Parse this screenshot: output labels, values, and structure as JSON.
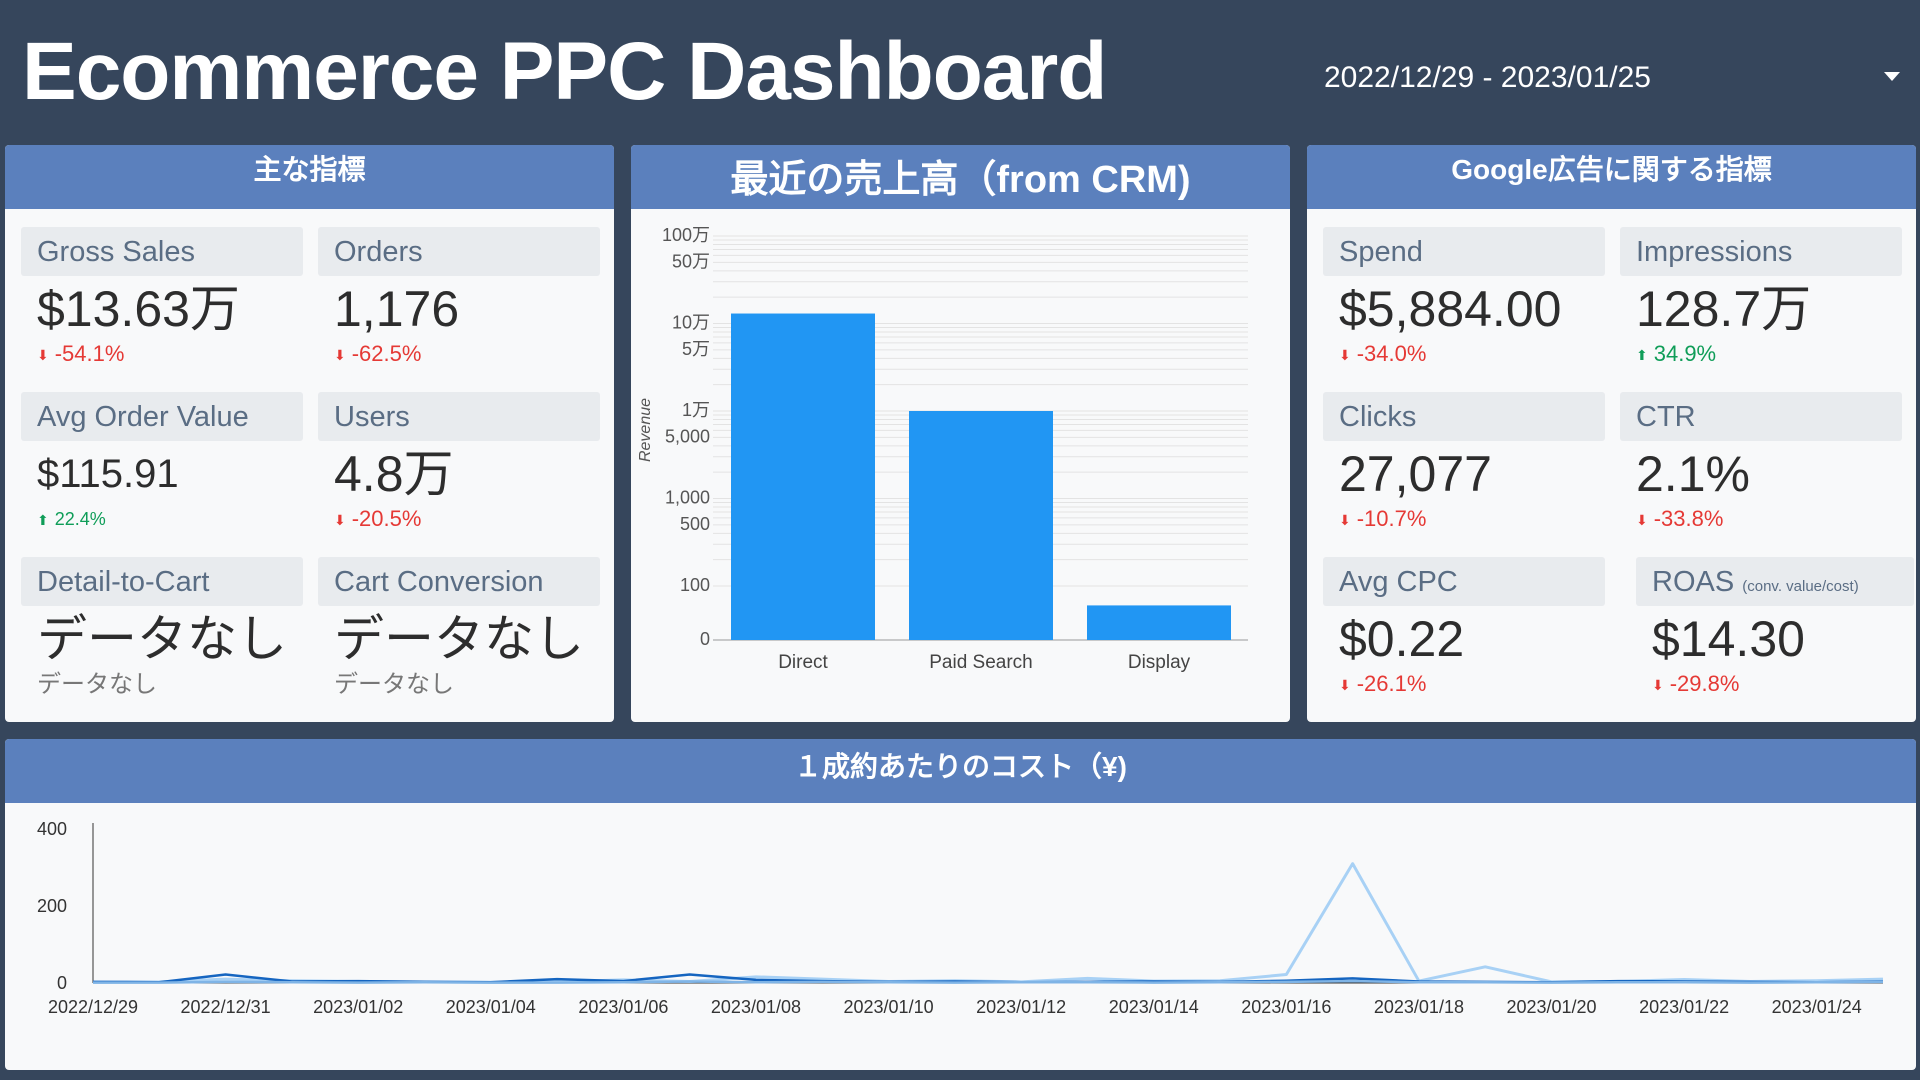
{
  "header": {
    "title": "Ecommerce PPC Dashboard",
    "date_range": "2022/12/29 - 2023/01/25"
  },
  "panels": {
    "main_metrics": {
      "title": "主な指標",
      "kpis": [
        {
          "label": "Gross Sales",
          "value": "$13.63万",
          "delta": "-54.1%",
          "trend": "down"
        },
        {
          "label": "Orders",
          "value": "1,176",
          "delta": "-62.5%",
          "trend": "down"
        },
        {
          "label": "Avg Order Value",
          "value": "$115.91",
          "delta": "22.4%",
          "trend": "up"
        },
        {
          "label": "Users",
          "value": "4.8万",
          "delta": "-20.5%",
          "trend": "down"
        },
        {
          "label": "Detail-to-Cart",
          "value": "データなし",
          "sub": "データなし"
        },
        {
          "label": "Cart Conversion",
          "value": "データなし",
          "sub": "データなし"
        }
      ]
    },
    "revenue": {
      "title": "最近の売上高（from CRM)"
    },
    "google_ads": {
      "title": "Google広告に関する指標",
      "kpis": [
        {
          "label": "Spend",
          "value": "$5,884.00",
          "delta": "-34.0%",
          "trend": "down"
        },
        {
          "label": "Impressions",
          "value": "128.7万",
          "delta": "34.9%",
          "trend": "up"
        },
        {
          "label": "Clicks",
          "value": "27,077",
          "delta": "-10.7%",
          "trend": "down"
        },
        {
          "label": "CTR",
          "value": "2.1%",
          "delta": "-33.8%",
          "trend": "down"
        },
        {
          "label": "Avg CPC",
          "value": "$0.22",
          "delta": "-26.1%",
          "trend": "down"
        },
        {
          "label": "ROAS",
          "label_sub": "(conv. value/cost)",
          "value": "$14.30",
          "delta": "-29.8%",
          "trend": "down"
        }
      ]
    },
    "cost_per_conversion": {
      "title": "１成約あたりのコスト（¥)"
    }
  },
  "colors": {
    "background": "#36465c",
    "header": "#5b80bd",
    "bar": "#2196f3",
    "line_light": "#a8d1f5",
    "line_dark": "#1565c0",
    "down": "#e53935",
    "up": "#0f9d58"
  },
  "chart_data": [
    {
      "type": "bar",
      "ylabel": "Revenue",
      "yscale": "log",
      "categories": [
        "Direct",
        "Paid Search",
        "Display"
      ],
      "values": [
        130000,
        10000,
        60
      ],
      "ticks": [
        {
          "value": 1000000,
          "label": "100万"
        },
        {
          "value": 500000,
          "label": "50万"
        },
        {
          "value": 100000,
          "label": "10万"
        },
        {
          "value": 50000,
          "label": "5万"
        },
        {
          "value": 10000,
          "label": "1万"
        },
        {
          "value": 5000,
          "label": "5,000"
        },
        {
          "value": 1000,
          "label": "1,000"
        },
        {
          "value": 500,
          "label": "500"
        },
        {
          "value": 100,
          "label": "100"
        },
        {
          "value": 0,
          "label": "0"
        }
      ],
      "grid": true
    },
    {
      "type": "line",
      "ylim": [
        0,
        400
      ],
      "yticks": [
        0,
        200,
        400
      ],
      "xtick_labels": [
        "2022/12/29",
        "2022/12/31",
        "2023/01/02",
        "2023/01/04",
        "2023/01/06",
        "2023/01/08",
        "2023/01/10",
        "2023/01/12",
        "2023/01/14",
        "2023/01/16",
        "2023/01/18",
        "2023/01/20",
        "2023/01/22",
        "2023/01/24"
      ],
      "x": [
        "2022/12/29",
        "2022/12/30",
        "2022/12/31",
        "2023/01/01",
        "2023/01/02",
        "2023/01/03",
        "2023/01/04",
        "2023/01/05",
        "2023/01/06",
        "2023/01/07",
        "2023/01/08",
        "2023/01/09",
        "2023/01/10",
        "2023/01/11",
        "2023/01/12",
        "2023/01/13",
        "2023/01/14",
        "2023/01/15",
        "2023/01/16",
        "2023/01/17",
        "2023/01/18",
        "2023/01/19",
        "2023/01/20",
        "2023/01/21",
        "2023/01/22",
        "2023/01/23",
        "2023/01/24",
        "2023/01/25"
      ],
      "series": [
        {
          "color": "#a8d1f5",
          "values": [
            2,
            3,
            10,
            6,
            4,
            3,
            2,
            3,
            8,
            4,
            16,
            10,
            4,
            6,
            3,
            12,
            5,
            6,
            22,
            310,
            5,
            42,
            3,
            4,
            9,
            4,
            6,
            10
          ]
        },
        {
          "color": "#1565c0",
          "values": [
            3,
            2,
            22,
            4,
            5,
            3,
            2,
            10,
            5,
            22,
            8,
            5,
            3,
            4,
            2,
            3,
            4,
            3,
            6,
            12,
            4,
            3,
            2,
            5,
            4,
            3,
            2,
            4
          ]
        },
        {
          "color": "#7fb4e6",
          "values": [
            1,
            1,
            3,
            2,
            1,
            2,
            1,
            1,
            2,
            4,
            2,
            3,
            2,
            1,
            2,
            2,
            1,
            2,
            3,
            5,
            2,
            2,
            1,
            2,
            2,
            1,
            2,
            3
          ]
        }
      ]
    }
  ]
}
